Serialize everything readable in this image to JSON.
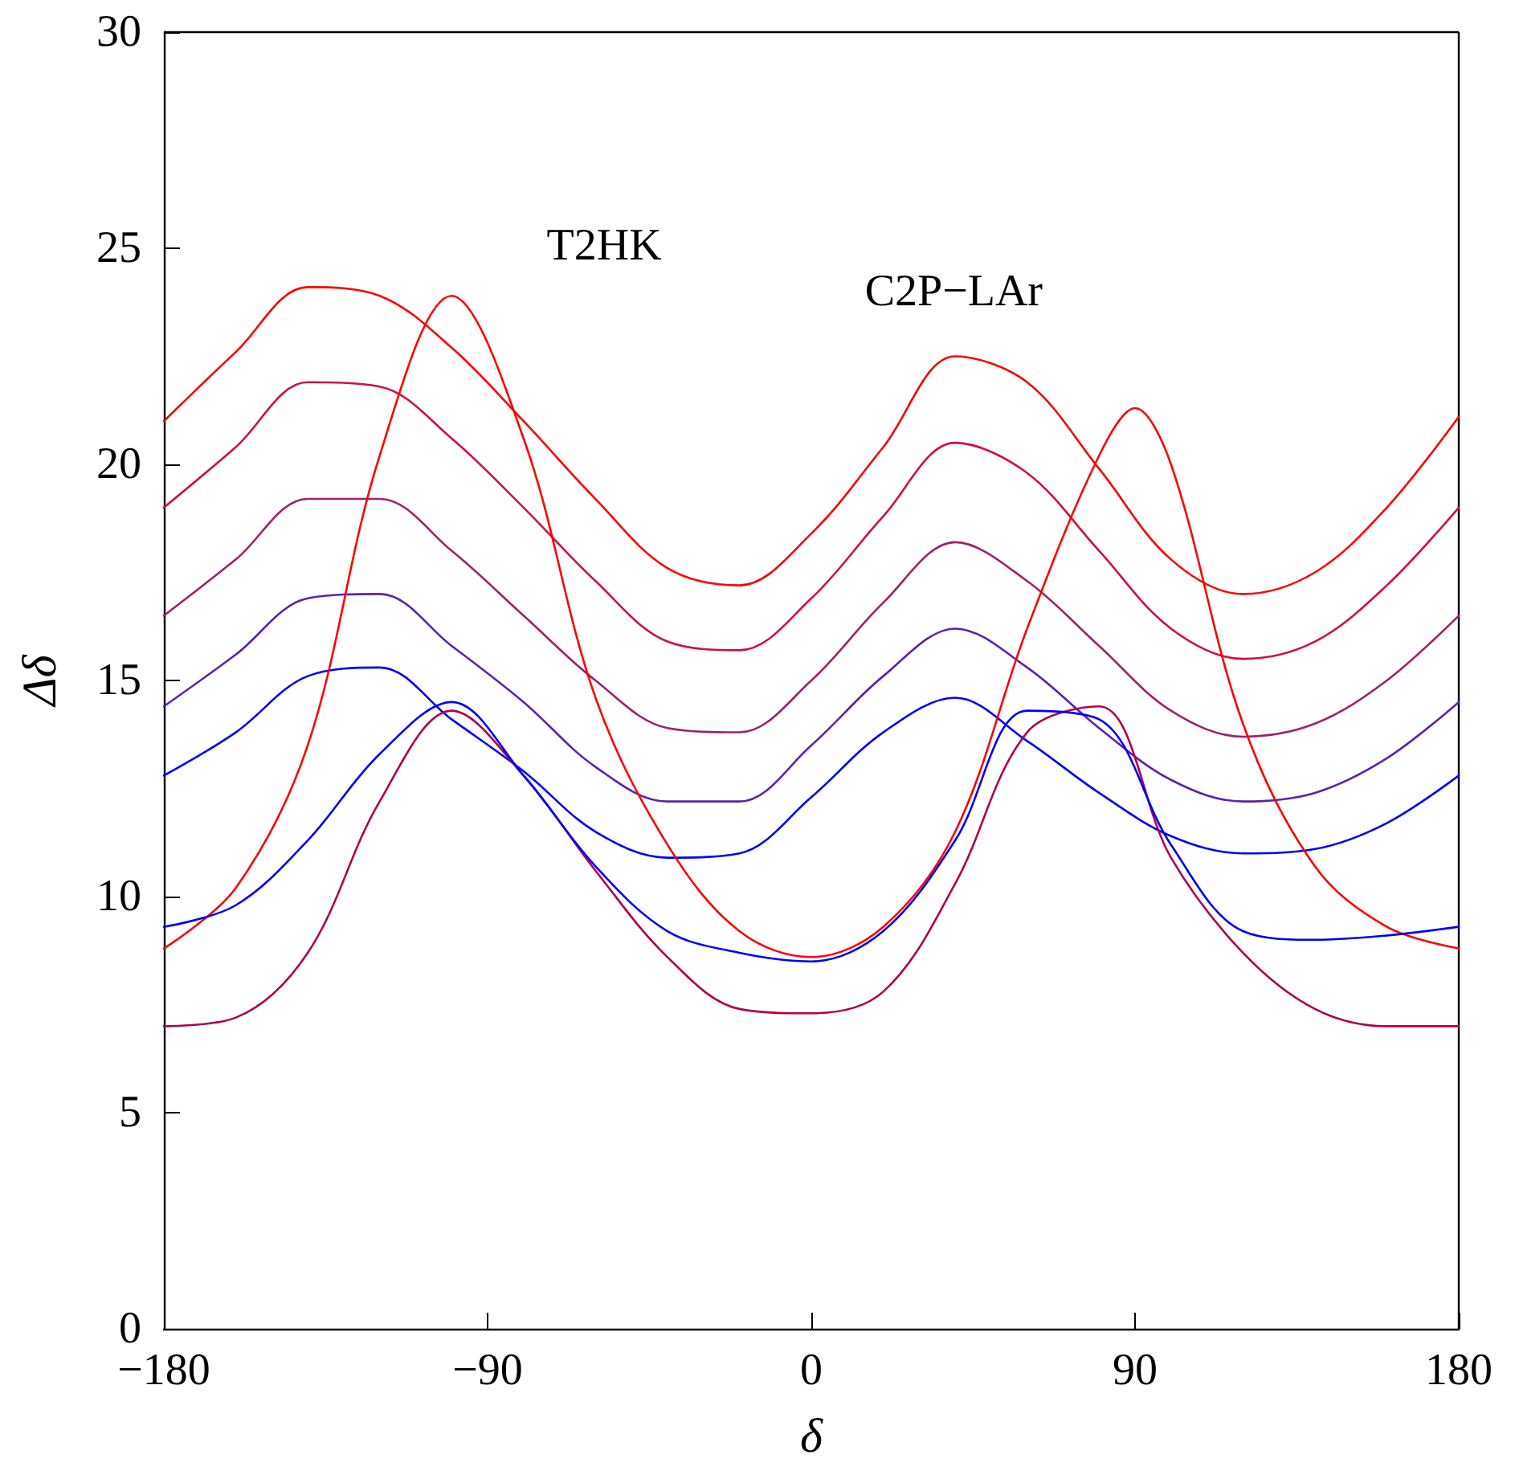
{
  "chart_data": {
    "type": "line",
    "xlabel": "δ",
    "ylabel": "Δδ",
    "x": [
      -180,
      -160,
      -140,
      -120,
      -100,
      -80,
      -60,
      -40,
      -20,
      0,
      20,
      40,
      60,
      80,
      100,
      120,
      140,
      160,
      180
    ],
    "series": [
      {
        "color": "#ff0000",
        "values": [
          21.0,
          22.6,
          24.1,
          23.9,
          22.7,
          21.0,
          19.2,
          17.6,
          17.2,
          18.4,
          20.4,
          22.5,
          21.9,
          19.9,
          17.8,
          17.0,
          17.5,
          19.0,
          21.1
        ]
      },
      {
        "color": "#d01040",
        "values": [
          19.0,
          20.4,
          21.9,
          21.8,
          20.6,
          19.0,
          17.3,
          15.9,
          15.7,
          16.9,
          18.8,
          20.5,
          19.8,
          18.0,
          16.2,
          15.5,
          15.9,
          17.2,
          19.0
        ]
      },
      {
        "color": "#a02070",
        "values": [
          16.5,
          17.8,
          19.2,
          19.2,
          18.0,
          16.5,
          15.0,
          13.9,
          13.8,
          15.0,
          16.8,
          18.2,
          17.3,
          15.8,
          14.3,
          13.7,
          14.0,
          15.0,
          16.5
        ]
      },
      {
        "color": "#6020b0",
        "values": [
          14.4,
          15.6,
          16.9,
          17.0,
          15.8,
          14.5,
          13.0,
          12.2,
          12.2,
          13.5,
          15.1,
          16.2,
          15.3,
          13.9,
          12.7,
          12.2,
          12.4,
          13.2,
          14.5
        ]
      },
      {
        "color": "#0000ff",
        "values": [
          12.8,
          13.8,
          15.1,
          15.3,
          14.1,
          12.9,
          11.5,
          10.9,
          11.0,
          12.3,
          13.8,
          14.6,
          13.6,
          12.4,
          11.4,
          11.0,
          11.1,
          11.7,
          12.8
        ]
      },
      {
        "color": "#ff0000",
        "x": [
          -180,
          -160,
          -140,
          -120,
          -100,
          -80,
          -60,
          -40,
          -20,
          0,
          20,
          40,
          60,
          80,
          90,
          100,
          120,
          140,
          160,
          180
        ],
        "values": [
          8.8,
          10.2,
          13.5,
          20.2,
          23.9,
          20.6,
          14.6,
          11.2,
          9.2,
          8.6,
          9.3,
          11.5,
          16.2,
          20.2,
          21.3,
          20.0,
          14.0,
          10.7,
          9.3,
          8.8
        ]
      },
      {
        "color": "#b00050",
        "values": [
          7.0,
          7.2,
          8.7,
          12.2,
          14.3,
          12.8,
          10.6,
          8.6,
          7.4,
          7.3,
          7.8,
          10.3,
          13.8,
          14.4,
          10.9,
          8.7,
          7.4,
          7.0,
          7.0
        ]
      },
      {
        "color": "#0000ff",
        "values": [
          9.3,
          9.8,
          11.3,
          13.3,
          14.5,
          12.8,
          10.7,
          9.2,
          8.7,
          8.5,
          9.2,
          11.3,
          14.3,
          14.1,
          11.2,
          9.2,
          9.0,
          9.1,
          9.3
        ]
      }
    ],
    "annotations": [
      "T2HK",
      "C2P−LAr"
    ],
    "xlim": [
      -180,
      180
    ],
    "xticks": [
      {
        "value": -180,
        "label": "−180"
      },
      {
        "value": -90,
        "label": "−90"
      },
      0,
      90,
      180
    ],
    "ylim": [
      0,
      30
    ],
    "yticks": [
      0,
      5,
      10,
      15,
      20,
      25,
      30
    ],
    "marker": "none",
    "line_style": "solid",
    "grid": false
  }
}
